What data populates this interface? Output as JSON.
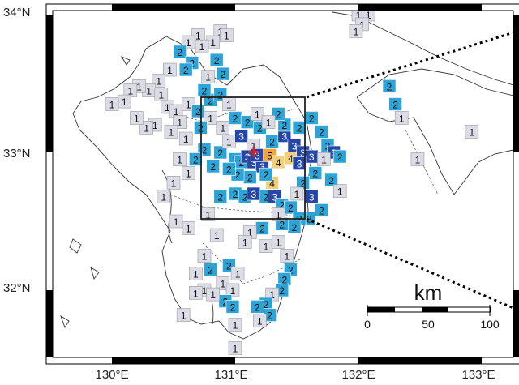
{
  "map": {
    "lat_labels": [
      "34°N",
      "33°N",
      "32°N"
    ],
    "lon_labels": [
      "130°E",
      "131°E",
      "132°E",
      "133°E"
    ],
    "scale_bar": {
      "unit": "km",
      "ticks": [
        "0",
        "50",
        "100"
      ]
    },
    "epicenter_marker": "+",
    "intensity_colors": {
      "1": "#dcdce6",
      "2": "#2ea3d6",
      "3": "#2747a8",
      "4": "#f0d07a",
      "5-": "#f3a53a"
    },
    "stations": [
      {
        "lon": 130.88,
        "lat": 33.88,
        "i": "1"
      },
      {
        "lon": 130.93,
        "lat": 33.85,
        "i": "1"
      },
      {
        "lon": 130.82,
        "lat": 33.8,
        "i": "1"
      },
      {
        "lon": 130.7,
        "lat": 33.85,
        "i": "1"
      },
      {
        "lon": 130.73,
        "lat": 33.77,
        "i": "1"
      },
      {
        "lon": 130.62,
        "lat": 33.8,
        "i": "1"
      },
      {
        "lon": 130.55,
        "lat": 33.73,
        "i": "2"
      },
      {
        "lon": 130.65,
        "lat": 33.65,
        "i": "2"
      },
      {
        "lon": 130.6,
        "lat": 33.6,
        "i": "2"
      },
      {
        "lon": 130.85,
        "lat": 33.67,
        "i": "2"
      },
      {
        "lon": 130.9,
        "lat": 33.57,
        "i": "2"
      },
      {
        "lon": 130.78,
        "lat": 33.55,
        "i": "1"
      },
      {
        "lon": 130.47,
        "lat": 33.6,
        "i": "1"
      },
      {
        "lon": 130.38,
        "lat": 33.52,
        "i": "1"
      },
      {
        "lon": 130.3,
        "lat": 33.45,
        "i": "1"
      },
      {
        "lon": 130.22,
        "lat": 33.48,
        "i": "1"
      },
      {
        "lon": 130.15,
        "lat": 33.45,
        "i": "1"
      },
      {
        "lon": 130.1,
        "lat": 33.37,
        "i": "1"
      },
      {
        "lon": 130.0,
        "lat": 33.35,
        "i": "1"
      },
      {
        "lon": 130.4,
        "lat": 33.42,
        "i": "1"
      },
      {
        "lon": 130.45,
        "lat": 33.33,
        "i": "1"
      },
      {
        "lon": 130.52,
        "lat": 33.3,
        "i": "1"
      },
      {
        "lon": 130.55,
        "lat": 33.22,
        "i": "1"
      },
      {
        "lon": 130.48,
        "lat": 33.15,
        "i": "1"
      },
      {
        "lon": 130.35,
        "lat": 33.2,
        "i": "1"
      },
      {
        "lon": 130.28,
        "lat": 33.18,
        "i": "1"
      },
      {
        "lon": 130.2,
        "lat": 33.25,
        "i": "1"
      },
      {
        "lon": 130.62,
        "lat": 33.35,
        "i": "1"
      },
      {
        "lon": 130.7,
        "lat": 33.3,
        "i": "2"
      },
      {
        "lon": 130.8,
        "lat": 33.38,
        "i": "2"
      },
      {
        "lon": 130.88,
        "lat": 33.42,
        "i": "2"
      },
      {
        "lon": 130.95,
        "lat": 33.35,
        "i": "1"
      },
      {
        "lon": 130.75,
        "lat": 33.45,
        "i": "2"
      },
      {
        "lon": 130.8,
        "lat": 33.25,
        "i": "1"
      },
      {
        "lon": 130.72,
        "lat": 33.18,
        "i": "2"
      },
      {
        "lon": 130.6,
        "lat": 33.1,
        "i": "1"
      },
      {
        "lon": 130.75,
        "lat": 33.02,
        "i": "2"
      },
      {
        "lon": 130.88,
        "lat": 33.0,
        "i": "2"
      },
      {
        "lon": 130.95,
        "lat": 33.08,
        "i": "1"
      },
      {
        "lon": 130.68,
        "lat": 32.95,
        "i": "2"
      },
      {
        "lon": 130.82,
        "lat": 32.9,
        "i": "2"
      },
      {
        "lon": 130.62,
        "lat": 32.85,
        "i": "1"
      },
      {
        "lon": 130.55,
        "lat": 32.95,
        "i": "1"
      },
      {
        "lon": 130.5,
        "lat": 32.78,
        "i": "1"
      },
      {
        "lon": 130.42,
        "lat": 32.68,
        "i": "1"
      },
      {
        "lon": 130.9,
        "lat": 33.18,
        "i": "1"
      },
      {
        "lon": 131.0,
        "lat": 33.25,
        "i": "2"
      },
      {
        "lon": 131.1,
        "lat": 33.22,
        "i": "2"
      },
      {
        "lon": 131.05,
        "lat": 33.12,
        "i": "3"
      },
      {
        "lon": 131.15,
        "lat": 33.05,
        "i": "1"
      },
      {
        "lon": 131.0,
        "lat": 32.95,
        "i": "2"
      },
      {
        "lon": 131.05,
        "lat": 32.93,
        "i": "2"
      },
      {
        "lon": 131.1,
        "lat": 32.97,
        "i": "3"
      },
      {
        "lon": 131.15,
        "lat": 32.93,
        "i": "3"
      },
      {
        "lon": 131.22,
        "lat": 32.9,
        "i": "3"
      },
      {
        "lon": 131.18,
        "lat": 32.98,
        "i": "3"
      },
      {
        "lon": 131.28,
        "lat": 32.98,
        "i": "5-"
      },
      {
        "lon": 131.35,
        "lat": 32.93,
        "i": "4"
      },
      {
        "lon": 131.45,
        "lat": 32.96,
        "i": "4"
      },
      {
        "lon": 131.3,
        "lat": 32.78,
        "i": "4"
      },
      {
        "lon": 131.25,
        "lat": 32.84,
        "i": "2"
      },
      {
        "lon": 131.12,
        "lat": 32.82,
        "i": "2"
      },
      {
        "lon": 131.02,
        "lat": 32.84,
        "i": "2"
      },
      {
        "lon": 130.95,
        "lat": 32.88,
        "i": "2"
      },
      {
        "lon": 131.3,
        "lat": 33.08,
        "i": "2"
      },
      {
        "lon": 131.4,
        "lat": 33.12,
        "i": "3"
      },
      {
        "lon": 131.48,
        "lat": 33.05,
        "i": "3"
      },
      {
        "lon": 131.55,
        "lat": 33.0,
        "i": "3"
      },
      {
        "lon": 131.62,
        "lat": 32.97,
        "i": "3"
      },
      {
        "lon": 131.52,
        "lat": 32.92,
        "i": "3"
      },
      {
        "lon": 131.4,
        "lat": 33.2,
        "i": "2"
      },
      {
        "lon": 131.52,
        "lat": 33.18,
        "i": "2"
      },
      {
        "lon": 131.62,
        "lat": 33.25,
        "i": "2"
      },
      {
        "lon": 131.7,
        "lat": 33.15,
        "i": "2"
      },
      {
        "lon": 131.75,
        "lat": 33.05,
        "i": "2"
      },
      {
        "lon": 131.8,
        "lat": 33.0,
        "i": "3"
      },
      {
        "lon": 131.85,
        "lat": 32.97,
        "i": "2"
      },
      {
        "lon": 131.72,
        "lat": 32.95,
        "i": "1"
      },
      {
        "lon": 131.65,
        "lat": 32.85,
        "i": "2"
      },
      {
        "lon": 131.78,
        "lat": 32.8,
        "i": "2"
      },
      {
        "lon": 131.85,
        "lat": 32.72,
        "i": "1"
      },
      {
        "lon": 131.55,
        "lat": 32.78,
        "i": "2"
      },
      {
        "lon": 131.5,
        "lat": 32.7,
        "i": "1"
      },
      {
        "lon": 131.2,
        "lat": 33.18,
        "i": "2"
      },
      {
        "lon": 131.35,
        "lat": 33.28,
        "i": "2"
      },
      {
        "lon": 131.18,
        "lat": 33.28,
        "i": "1"
      },
      {
        "lon": 131.27,
        "lat": 33.22,
        "i": "1"
      },
      {
        "lon": 130.88,
        "lat": 32.68,
        "i": "2"
      },
      {
        "lon": 131.0,
        "lat": 32.7,
        "i": "2"
      },
      {
        "lon": 131.08,
        "lat": 32.68,
        "i": "2"
      },
      {
        "lon": 131.15,
        "lat": 32.7,
        "i": "3"
      },
      {
        "lon": 131.25,
        "lat": 32.68,
        "i": "2"
      },
      {
        "lon": 131.32,
        "lat": 32.68,
        "i": "3"
      },
      {
        "lon": 131.38,
        "lat": 32.62,
        "i": "2"
      },
      {
        "lon": 131.45,
        "lat": 32.6,
        "i": "2"
      },
      {
        "lon": 131.62,
        "lat": 32.68,
        "i": "3"
      },
      {
        "lon": 131.6,
        "lat": 32.52,
        "i": "2"
      },
      {
        "lon": 131.52,
        "lat": 32.52,
        "i": "2"
      },
      {
        "lon": 131.48,
        "lat": 32.46,
        "i": "2"
      },
      {
        "lon": 131.38,
        "lat": 32.48,
        "i": "2"
      },
      {
        "lon": 131.35,
        "lat": 32.55,
        "i": "1"
      },
      {
        "lon": 131.22,
        "lat": 32.45,
        "i": "2"
      },
      {
        "lon": 131.12,
        "lat": 32.42,
        "i": "1"
      },
      {
        "lon": 131.08,
        "lat": 32.35,
        "i": "1"
      },
      {
        "lon": 131.25,
        "lat": 32.32,
        "i": "1"
      },
      {
        "lon": 131.35,
        "lat": 32.35,
        "i": "1"
      },
      {
        "lon": 131.42,
        "lat": 32.25,
        "i": "1"
      },
      {
        "lon": 131.45,
        "lat": 32.15,
        "i": "2"
      },
      {
        "lon": 131.4,
        "lat": 32.08,
        "i": "2"
      },
      {
        "lon": 131.38,
        "lat": 32.0,
        "i": "2"
      },
      {
        "lon": 131.3,
        "lat": 31.97,
        "i": "1"
      },
      {
        "lon": 131.25,
        "lat": 31.9,
        "i": "2"
      },
      {
        "lon": 131.28,
        "lat": 31.82,
        "i": "2"
      },
      {
        "lon": 131.18,
        "lat": 31.88,
        "i": "2"
      },
      {
        "lon": 131.2,
        "lat": 31.78,
        "i": "1"
      },
      {
        "lon": 130.85,
        "lat": 32.4,
        "i": "1"
      },
      {
        "lon": 130.75,
        "lat": 32.25,
        "i": "1"
      },
      {
        "lon": 130.68,
        "lat": 32.12,
        "i": "1"
      },
      {
        "lon": 130.8,
        "lat": 32.15,
        "i": "2"
      },
      {
        "lon": 130.95,
        "lat": 32.18,
        "i": "2"
      },
      {
        "lon": 131.02,
        "lat": 32.12,
        "i": "1"
      },
      {
        "lon": 130.9,
        "lat": 32.05,
        "i": "1"
      },
      {
        "lon": 130.98,
        "lat": 32.0,
        "i": "1"
      },
      {
        "lon": 130.92,
        "lat": 31.92,
        "i": "2"
      },
      {
        "lon": 130.98,
        "lat": 31.88,
        "i": "2"
      },
      {
        "lon": 130.75,
        "lat": 32.0,
        "i": "1"
      },
      {
        "lon": 130.82,
        "lat": 31.97,
        "i": "1"
      },
      {
        "lon": 130.68,
        "lat": 31.98,
        "i": "1"
      },
      {
        "lon": 130.58,
        "lat": 31.82,
        "i": "1"
      },
      {
        "lon": 131.0,
        "lat": 31.75,
        "i": "1"
      },
      {
        "lon": 131.0,
        "lat": 31.58,
        "i": "1"
      },
      {
        "lon": 130.78,
        "lat": 32.55,
        "i": "1"
      },
      {
        "lon": 130.62,
        "lat": 32.45,
        "i": "1"
      },
      {
        "lon": 130.52,
        "lat": 32.5,
        "i": "1"
      },
      {
        "lon": 132.0,
        "lat": 34.0,
        "i": "1"
      },
      {
        "lon": 132.08,
        "lat": 34.0,
        "i": "1"
      },
      {
        "lon": 132.03,
        "lat": 33.93,
        "i": "1"
      },
      {
        "lon": 131.98,
        "lat": 33.88,
        "i": "1"
      },
      {
        "lon": 132.25,
        "lat": 33.48,
        "i": "2"
      },
      {
        "lon": 132.3,
        "lat": 33.35,
        "i": "2"
      },
      {
        "lon": 132.35,
        "lat": 33.25,
        "i": "1"
      },
      {
        "lon": 132.48,
        "lat": 32.95,
        "i": "1"
      },
      {
        "lon": 132.92,
        "lat": 33.15,
        "i": "1"
      },
      {
        "lon": 131.7,
        "lat": 32.58,
        "i": "2"
      }
    ]
  }
}
